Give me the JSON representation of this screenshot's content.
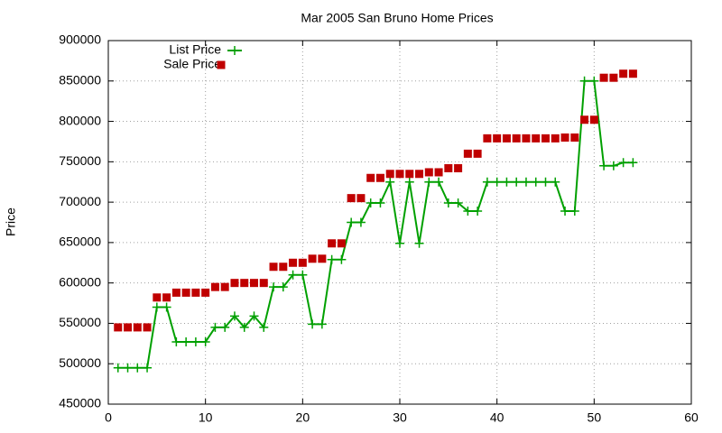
{
  "chart_data": {
    "type": "line",
    "title": "Mar 2005 San Bruno Home Prices",
    "y_label": "Price",
    "x": [
      1,
      2,
      3,
      4,
      5,
      6,
      7,
      8,
      9,
      10,
      11,
      12,
      13,
      14,
      15,
      16,
      17,
      18,
      19,
      20,
      21,
      22,
      23,
      24,
      25,
      26,
      27,
      28,
      29,
      30,
      31,
      32,
      33,
      34,
      35,
      36,
      37,
      38,
      39,
      40,
      41,
      42,
      43,
      44,
      45,
      46,
      47,
      48,
      49,
      50,
      51,
      52,
      53,
      54
    ],
    "series": [
      {
        "name": "List Price",
        "color": "#00a000",
        "style": "linespoints",
        "values": [
          495000,
          495000,
          495000,
          495000,
          570000,
          570000,
          527000,
          527000,
          527000,
          527000,
          545000,
          545000,
          559000,
          545000,
          559000,
          545000,
          595000,
          595000,
          610000,
          610000,
          549000,
          549000,
          629000,
          629000,
          675000,
          675000,
          699000,
          699000,
          725000,
          649000,
          725000,
          649000,
          725000,
          725000,
          699000,
          699000,
          689000,
          689000,
          725000,
          725000,
          725000,
          725000,
          725000,
          725000,
          725000,
          725000,
          689000,
          689000,
          850000,
          850000,
          745000,
          745000,
          749000,
          749000
        ]
      },
      {
        "name": "Sale Price",
        "color": "#c00000",
        "style": "points",
        "values": [
          545000,
          545000,
          545000,
          545000,
          582000,
          582000,
          588000,
          588000,
          588000,
          588000,
          595000,
          595000,
          600000,
          600000,
          600000,
          600000,
          620000,
          620000,
          625000,
          625000,
          630000,
          630000,
          649000,
          649000,
          705000,
          705000,
          730000,
          730000,
          735000,
          735000,
          735000,
          735000,
          737000,
          737000,
          742000,
          742000,
          760000,
          760000,
          779000,
          779000,
          779000,
          779000,
          779000,
          779000,
          779000,
          779000,
          780000,
          780000,
          802000,
          802000,
          854000,
          854000,
          859000,
          859000
        ]
      }
    ],
    "xlim": [
      0,
      60
    ],
    "xticks": [
      0,
      10,
      20,
      30,
      40,
      50,
      60
    ],
    "ylim": [
      450000,
      900000
    ],
    "yticks": [
      450000,
      500000,
      550000,
      600000,
      650000,
      700000,
      750000,
      800000,
      850000,
      900000
    ],
    "grid": true,
    "legend": "upper left"
  }
}
